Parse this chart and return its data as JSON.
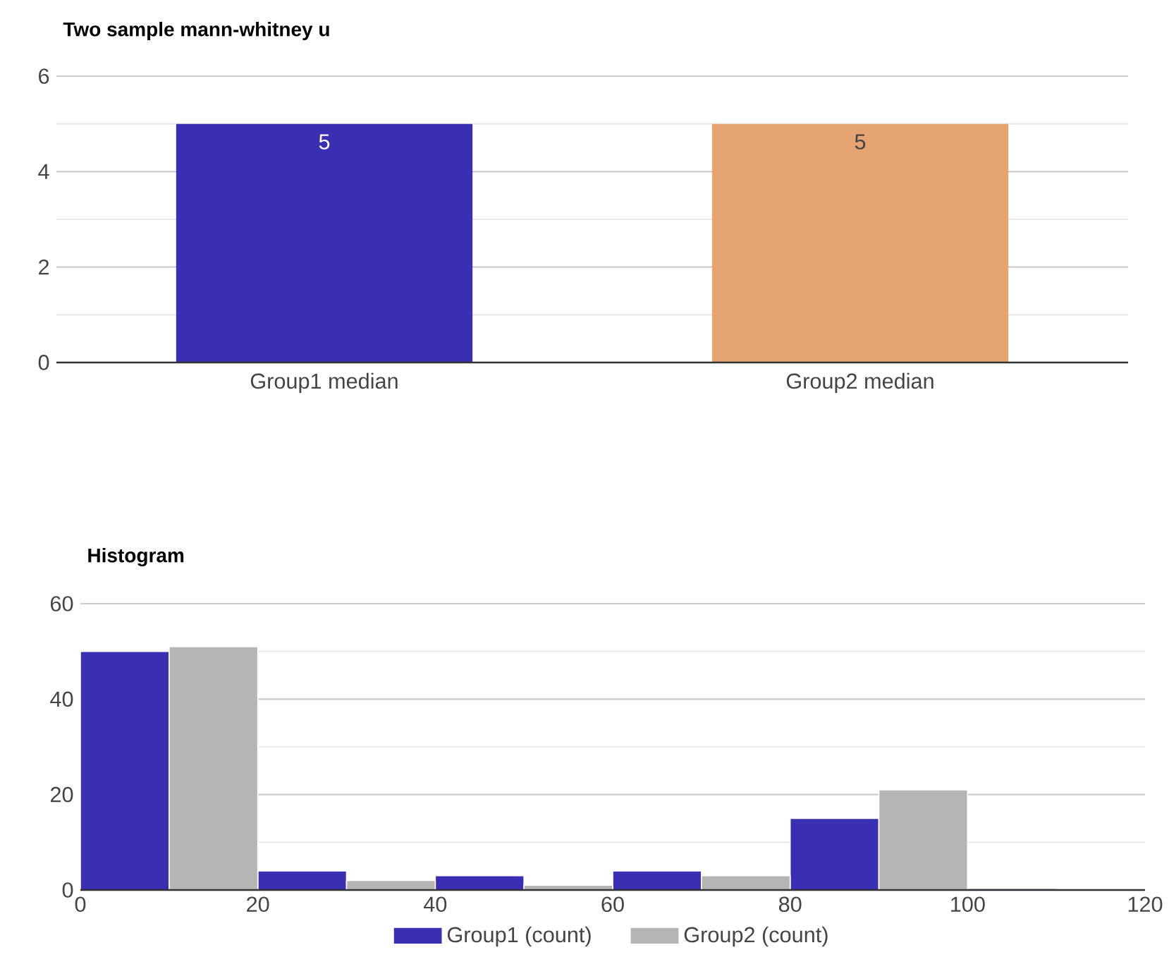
{
  "chart_data": [
    {
      "type": "bar",
      "title": "Two sample mann-whitney u",
      "categories": [
        "Group1 median",
        "Group2 median"
      ],
      "values": [
        5,
        5
      ],
      "colors": [
        "#3a2fb2",
        "#e6a472"
      ],
      "ylim": [
        0,
        6
      ],
      "yticks": [
        0,
        2,
        4,
        6
      ],
      "grid": "y",
      "data_labels": true
    },
    {
      "type": "histogram",
      "title": "Histogram",
      "bins": [
        0,
        20,
        40,
        60,
        80,
        100,
        120
      ],
      "series": [
        {
          "name": "Group1 (count)",
          "color": "#3a2fb2",
          "values": [
            50,
            4,
            3,
            4,
            15,
            0.3
          ]
        },
        {
          "name": "Group2 (count)",
          "color": "#b5b5b5",
          "values": [
            51,
            2,
            1,
            3,
            21,
            0
          ]
        }
      ],
      "xlim": [
        0,
        120
      ],
      "xticks": [
        0,
        20,
        40,
        60,
        80,
        100,
        120
      ],
      "ylim": [
        0,
        60
      ],
      "yticks": [
        0,
        20,
        40,
        60
      ],
      "grid": "y",
      "legend": "bottom"
    }
  ]
}
